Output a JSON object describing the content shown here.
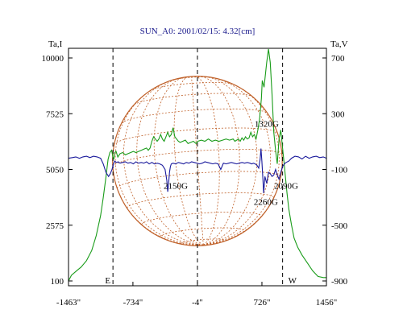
{
  "chart_data": {
    "type": "line",
    "title": "SUN_A0: 2001/02/15: 4.32[cm]",
    "y_left_label": "Ta,I",
    "y_right_label": "Ta,V",
    "x_ticks": [
      "-1463\"",
      "-734\"",
      "-4\"",
      "726\"",
      "1456\""
    ],
    "x_tick_values": [
      -1463,
      -734,
      -4,
      726,
      1456
    ],
    "xlim": [
      -1463,
      1456
    ],
    "y_left_ticks": [
      "10000",
      "7525",
      "5050",
      "2575",
      "100"
    ],
    "y_left_tick_values": [
      10000,
      7525,
      5050,
      2575,
      100
    ],
    "ylim_left": [
      100,
      10000
    ],
    "y_right_ticks": [
      "700",
      "300",
      "-100",
      "-500",
      "-900"
    ],
    "y_right_tick_values": [
      700,
      300,
      -100,
      -500,
      -900
    ],
    "ylim_right": [
      -900,
      700
    ],
    "grid": false,
    "limb_markers": [
      {
        "label": "E",
        "x": -960
      },
      {
        "label": "W",
        "x": 960
      }
    ],
    "center_marker_x": -4,
    "solar_disk": {
      "center_x": -4,
      "radius": 960
    },
    "annotations": [
      {
        "text": "1320G",
        "x": 780,
        "y_right": 205
      },
      {
        "text": "2150G",
        "x": -250,
        "y_right": -240
      },
      {
        "text": "2090G",
        "x": 1000,
        "y_right": -240
      },
      {
        "text": "2260G",
        "x": 770,
        "y_right": -355
      }
    ],
    "series": [
      {
        "name": "I",
        "axis": "left",
        "color": "#1a9c1a",
        "x": [
          -1463,
          -1430,
          -1380,
          -1320,
          -1260,
          -1200,
          -1150,
          -1100,
          -1070,
          -1040,
          -1015,
          -995,
          -975,
          -960,
          -950,
          -940,
          -925,
          -905,
          -880,
          -850,
          -820,
          -790,
          -760,
          -730,
          -700,
          -670,
          -640,
          -610,
          -580,
          -560,
          -540,
          -520,
          -500,
          -480,
          -460,
          -440,
          -420,
          -400,
          -380,
          -360,
          -340,
          -320,
          -300,
          -280,
          -260,
          -240,
          -220,
          -200,
          -170,
          -140,
          -110,
          -80,
          -50,
          -20,
          0,
          40,
          80,
          120,
          160,
          200,
          240,
          280,
          320,
          360,
          400,
          420,
          440,
          460,
          480,
          500,
          520,
          540,
          560,
          580,
          600,
          620,
          640,
          660,
          680,
          700,
          720,
          730,
          750,
          780,
          800,
          820,
          840,
          860,
          880,
          900,
          920,
          940,
          960,
          975,
          990,
          1010,
          1030,
          1060,
          1090,
          1130,
          1180,
          1240,
          1300,
          1360,
          1420,
          1456
        ],
        "values": [
          100,
          350,
          520,
          720,
          1000,
          1450,
          2100,
          3000,
          3800,
          4700,
          5500,
          5800,
          5900,
          5600,
          5500,
          5800,
          5850,
          5600,
          5750,
          5800,
          5700,
          5750,
          5800,
          5850,
          5800,
          5850,
          5900,
          5950,
          6000,
          5900,
          6000,
          6300,
          6500,
          6400,
          6300,
          6400,
          6600,
          6400,
          6300,
          6500,
          6700,
          6500,
          6600,
          6900,
          6500,
          6400,
          6300,
          6250,
          6300,
          6350,
          6200,
          6250,
          6300,
          6200,
          6300,
          6350,
          6300,
          6400,
          6300,
          6350,
          6300,
          6350,
          6400,
          6350,
          6400,
          6300,
          6350,
          6400,
          6300,
          6450,
          6350,
          6500,
          6400,
          6450,
          6700,
          6500,
          6600,
          6400,
          6800,
          7300,
          8200,
          9000,
          8700,
          9800,
          10500,
          9800,
          8400,
          6700,
          5900,
          5300,
          6400,
          6800,
          6000,
          5400,
          4800,
          4000,
          3300,
          2600,
          2000,
          1600,
          1250,
          900,
          550,
          300,
          250,
          250
        ]
      },
      {
        "name": "V",
        "axis": "right",
        "color": "#1a1a9c",
        "x": [
          -1463,
          -1420,
          -1380,
          -1340,
          -1300,
          -1260,
          -1220,
          -1180,
          -1140,
          -1100,
          -1070,
          -1040,
          -1010,
          -990,
          -970,
          -955,
          -940,
          -920,
          -900,
          -880,
          -850,
          -820,
          -790,
          -760,
          -730,
          -700,
          -670,
          -640,
          -610,
          -580,
          -550,
          -520,
          -490,
          -460,
          -430,
          -400,
          -370,
          -350,
          -340,
          -330,
          -320,
          -310,
          -300,
          -280,
          -250,
          -220,
          -190,
          -160,
          -130,
          -100,
          -70,
          -40,
          -10,
          20,
          50,
          80,
          110,
          140,
          170,
          200,
          230,
          260,
          290,
          320,
          350,
          380,
          410,
          440,
          470,
          500,
          530,
          560,
          590,
          610,
          630,
          650,
          670,
          690,
          705,
          715,
          725,
          735,
          745,
          760,
          780,
          800,
          820,
          840,
          860,
          880,
          900,
          920,
          940,
          960,
          980,
          1000,
          1030,
          1060,
          1100,
          1140,
          1180,
          1220,
          1260,
          1300,
          1340,
          1380,
          1420,
          1456
        ],
        "values": [
          -20,
          -15,
          -10,
          -20,
          -10,
          -5,
          -15,
          -5,
          -10,
          -20,
          -60,
          -120,
          -150,
          -130,
          -100,
          -60,
          -40,
          -50,
          -45,
          -55,
          -50,
          -45,
          -55,
          -50,
          -60,
          -45,
          -55,
          -50,
          -55,
          -45,
          -60,
          -50,
          -60,
          -55,
          -60,
          -70,
          -100,
          -180,
          -260,
          -200,
          -120,
          -80,
          -60,
          -55,
          -60,
          -50,
          -55,
          -60,
          -50,
          -55,
          -45,
          -50,
          -55,
          -60,
          -55,
          -45,
          -50,
          -55,
          -60,
          -55,
          -60,
          -100,
          -55,
          -60,
          -55,
          -50,
          -55,
          -60,
          -55,
          -50,
          -55,
          -50,
          -55,
          -60,
          -55,
          -60,
          -70,
          -90,
          -30,
          50,
          -40,
          -150,
          -270,
          -150,
          -200,
          -120,
          -130,
          -150,
          -140,
          -100,
          -140,
          -170,
          -120,
          -80,
          -60,
          -50,
          -40,
          -20,
          -5,
          -10,
          -25,
          -5,
          -20,
          -10,
          -5,
          -15,
          -10,
          -20
        ]
      }
    ]
  }
}
